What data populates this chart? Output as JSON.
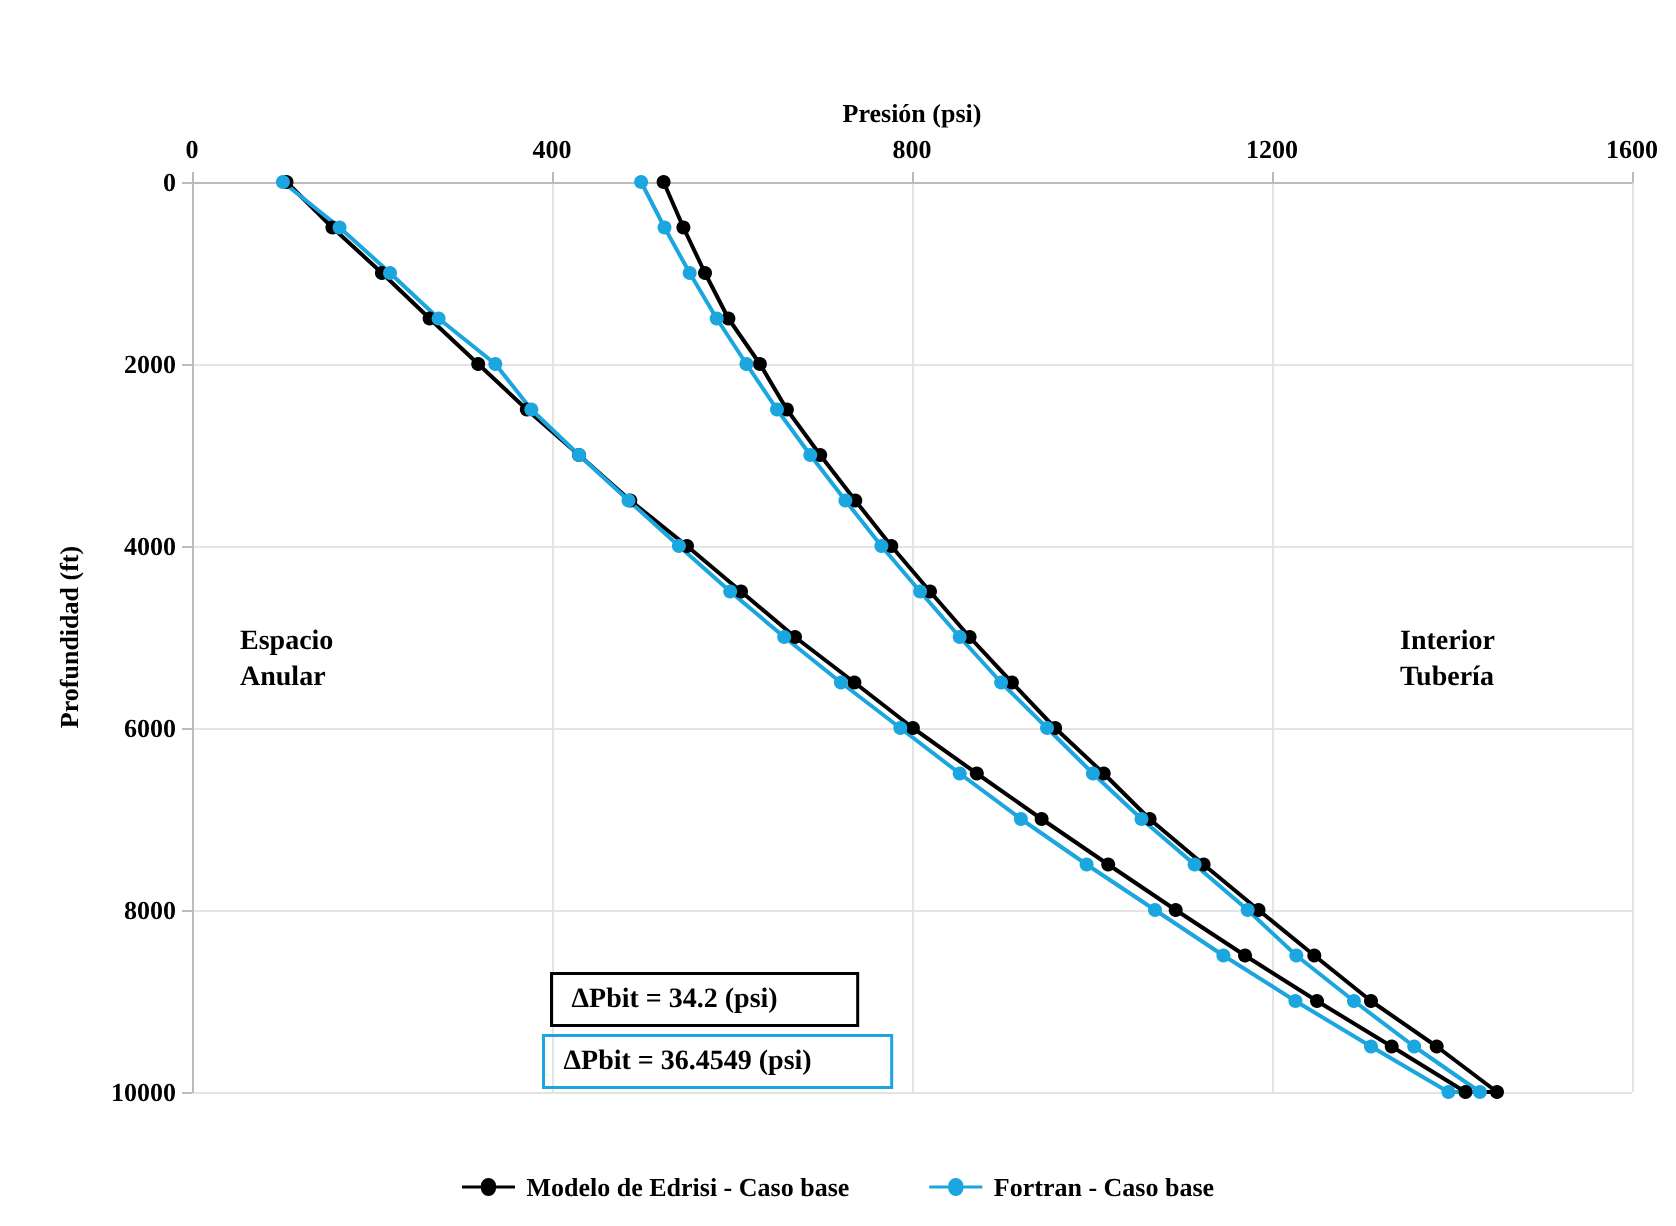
{
  "chart_data": {
    "type": "line",
    "xlabel": "Presión (psi)",
    "ylabel": "Profundidad (ft)",
    "xlim": [
      0,
      1600
    ],
    "xticks": [
      0,
      400,
      800,
      1200,
      1600
    ],
    "ylim": [
      10000,
      0
    ],
    "yticks": [
      0,
      2000,
      4000,
      6000,
      8000,
      10000
    ],
    "grid": true,
    "legend": "bottom",
    "marker": "circle",
    "line_style": "solid",
    "annotations": [
      "Espacio\nAnular",
      "Interior\nTubería",
      "ΔPbit = 34.2 (psi)",
      "ΔPbit = 36.4549 (psi)"
    ],
    "series": [
      {
        "name": "Modelo de Edrisi - Caso base",
        "color": "#000000",
        "x": [
          105,
          156,
          211,
          264,
          318,
          372,
          430,
          487,
          550,
          610,
          670,
          736,
          801,
          872,
          944,
          1018,
          1093,
          1170,
          1250,
          1333,
          1415,
          1450,
          1383,
          1310,
          1247,
          1185,
          1124,
          1064,
          1013,
          959,
          911,
          864,
          820,
          777,
          737,
          698,
          661,
          631,
          596,
          570,
          546,
          524
        ],
        "values": [
          0,
          500,
          1000,
          1500,
          2000,
          2500,
          3000,
          3500,
          4000,
          4500,
          5000,
          5500,
          6000,
          6500,
          7000,
          7500,
          8000,
          8500,
          9000,
          9500,
          10000,
          10000,
          9500,
          9000,
          8500,
          8000,
          7500,
          7000,
          6500,
          6000,
          5500,
          5000,
          4500,
          4000,
          3500,
          3000,
          2500,
          2000,
          1500,
          1000,
          500,
          0
        ]
      },
      {
        "name": "Fortran - Caso base",
        "color": "#1ba6e0",
        "x": [
          101,
          164,
          220,
          274,
          337,
          377,
          430,
          485,
          541,
          598,
          658,
          721,
          787,
          853,
          921,
          994,
          1070,
          1146,
          1226,
          1310,
          1396,
          1431,
          1358,
          1291,
          1227,
          1173,
          1114,
          1055,
          1001,
          950,
          899,
          853,
          809,
          766,
          726,
          687,
          650,
          616,
          583,
          553,
          525,
          499
        ],
        "values": [
          0,
          500,
          1000,
          1500,
          2000,
          2500,
          3000,
          3500,
          4000,
          4500,
          5000,
          5500,
          6000,
          6500,
          7000,
          7500,
          8000,
          8500,
          9000,
          9500,
          10000,
          10000,
          9500,
          9000,
          8500,
          8000,
          7500,
          7000,
          6500,
          6000,
          5500,
          5000,
          4500,
          4000,
          3500,
          3000,
          2500,
          2000,
          1500,
          1000,
          500,
          0
        ]
      }
    ]
  }
}
